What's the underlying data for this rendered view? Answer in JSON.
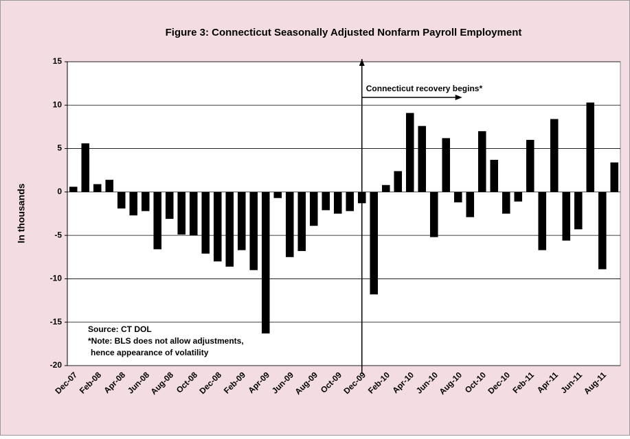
{
  "chart_data": {
    "type": "bar",
    "title": "Figure 3: Connecticut Seasonally Adjusted Nonfarm Payroll Employment",
    "y_label": "In thousands",
    "categories": [
      "Dec-07",
      null,
      "Feb-08",
      null,
      "Apr-08",
      null,
      "Jun-08",
      null,
      "Aug-08",
      null,
      "Oct-08",
      null,
      "Dec-08",
      null,
      "Feb-09",
      null,
      "Apr-09",
      null,
      "Jun-09",
      null,
      "Aug-09",
      null,
      "Oct-09",
      null,
      "Dec-09",
      null,
      "Feb-10",
      null,
      "Apr-10",
      null,
      "Jun-10",
      null,
      "Aug-10",
      null,
      "Oct-10",
      null,
      "Dec-10",
      null,
      "Feb-11",
      null,
      "Apr-11",
      null,
      "Jun-11",
      null,
      "Aug-11",
      null
    ],
    "values": [
      0.6,
      5.6,
      0.9,
      1.4,
      -1.9,
      -2.7,
      -2.2,
      -6.6,
      -3.1,
      -4.9,
      -5.0,
      -7.1,
      -8.0,
      -8.6,
      -6.7,
      -9.0,
      -16.3,
      -0.7,
      -7.5,
      -6.8,
      -3.9,
      -2.1,
      -2.5,
      -2.2,
      -1.3,
      -11.8,
      0.8,
      2.4,
      9.1,
      7.6,
      -5.2,
      6.2,
      -1.2,
      -2.9,
      7.0,
      3.7,
      -2.5,
      -1.1,
      6.0,
      -6.7,
      8.4,
      -5.6,
      -4.3,
      10.3,
      -8.9,
      3.4
    ],
    "color": "#000000",
    "ylim": [
      -20,
      15
    ],
    "yticks": [
      -20,
      -15,
      -10,
      -5,
      0,
      5,
      10,
      15
    ],
    "grid": true,
    "annotation": "Connecticut recovery begins*",
    "notes": [
      "Source: CT DOL",
      "*Note: BLS does not allow adjustments,",
      "hence appearance of volatility"
    ]
  }
}
